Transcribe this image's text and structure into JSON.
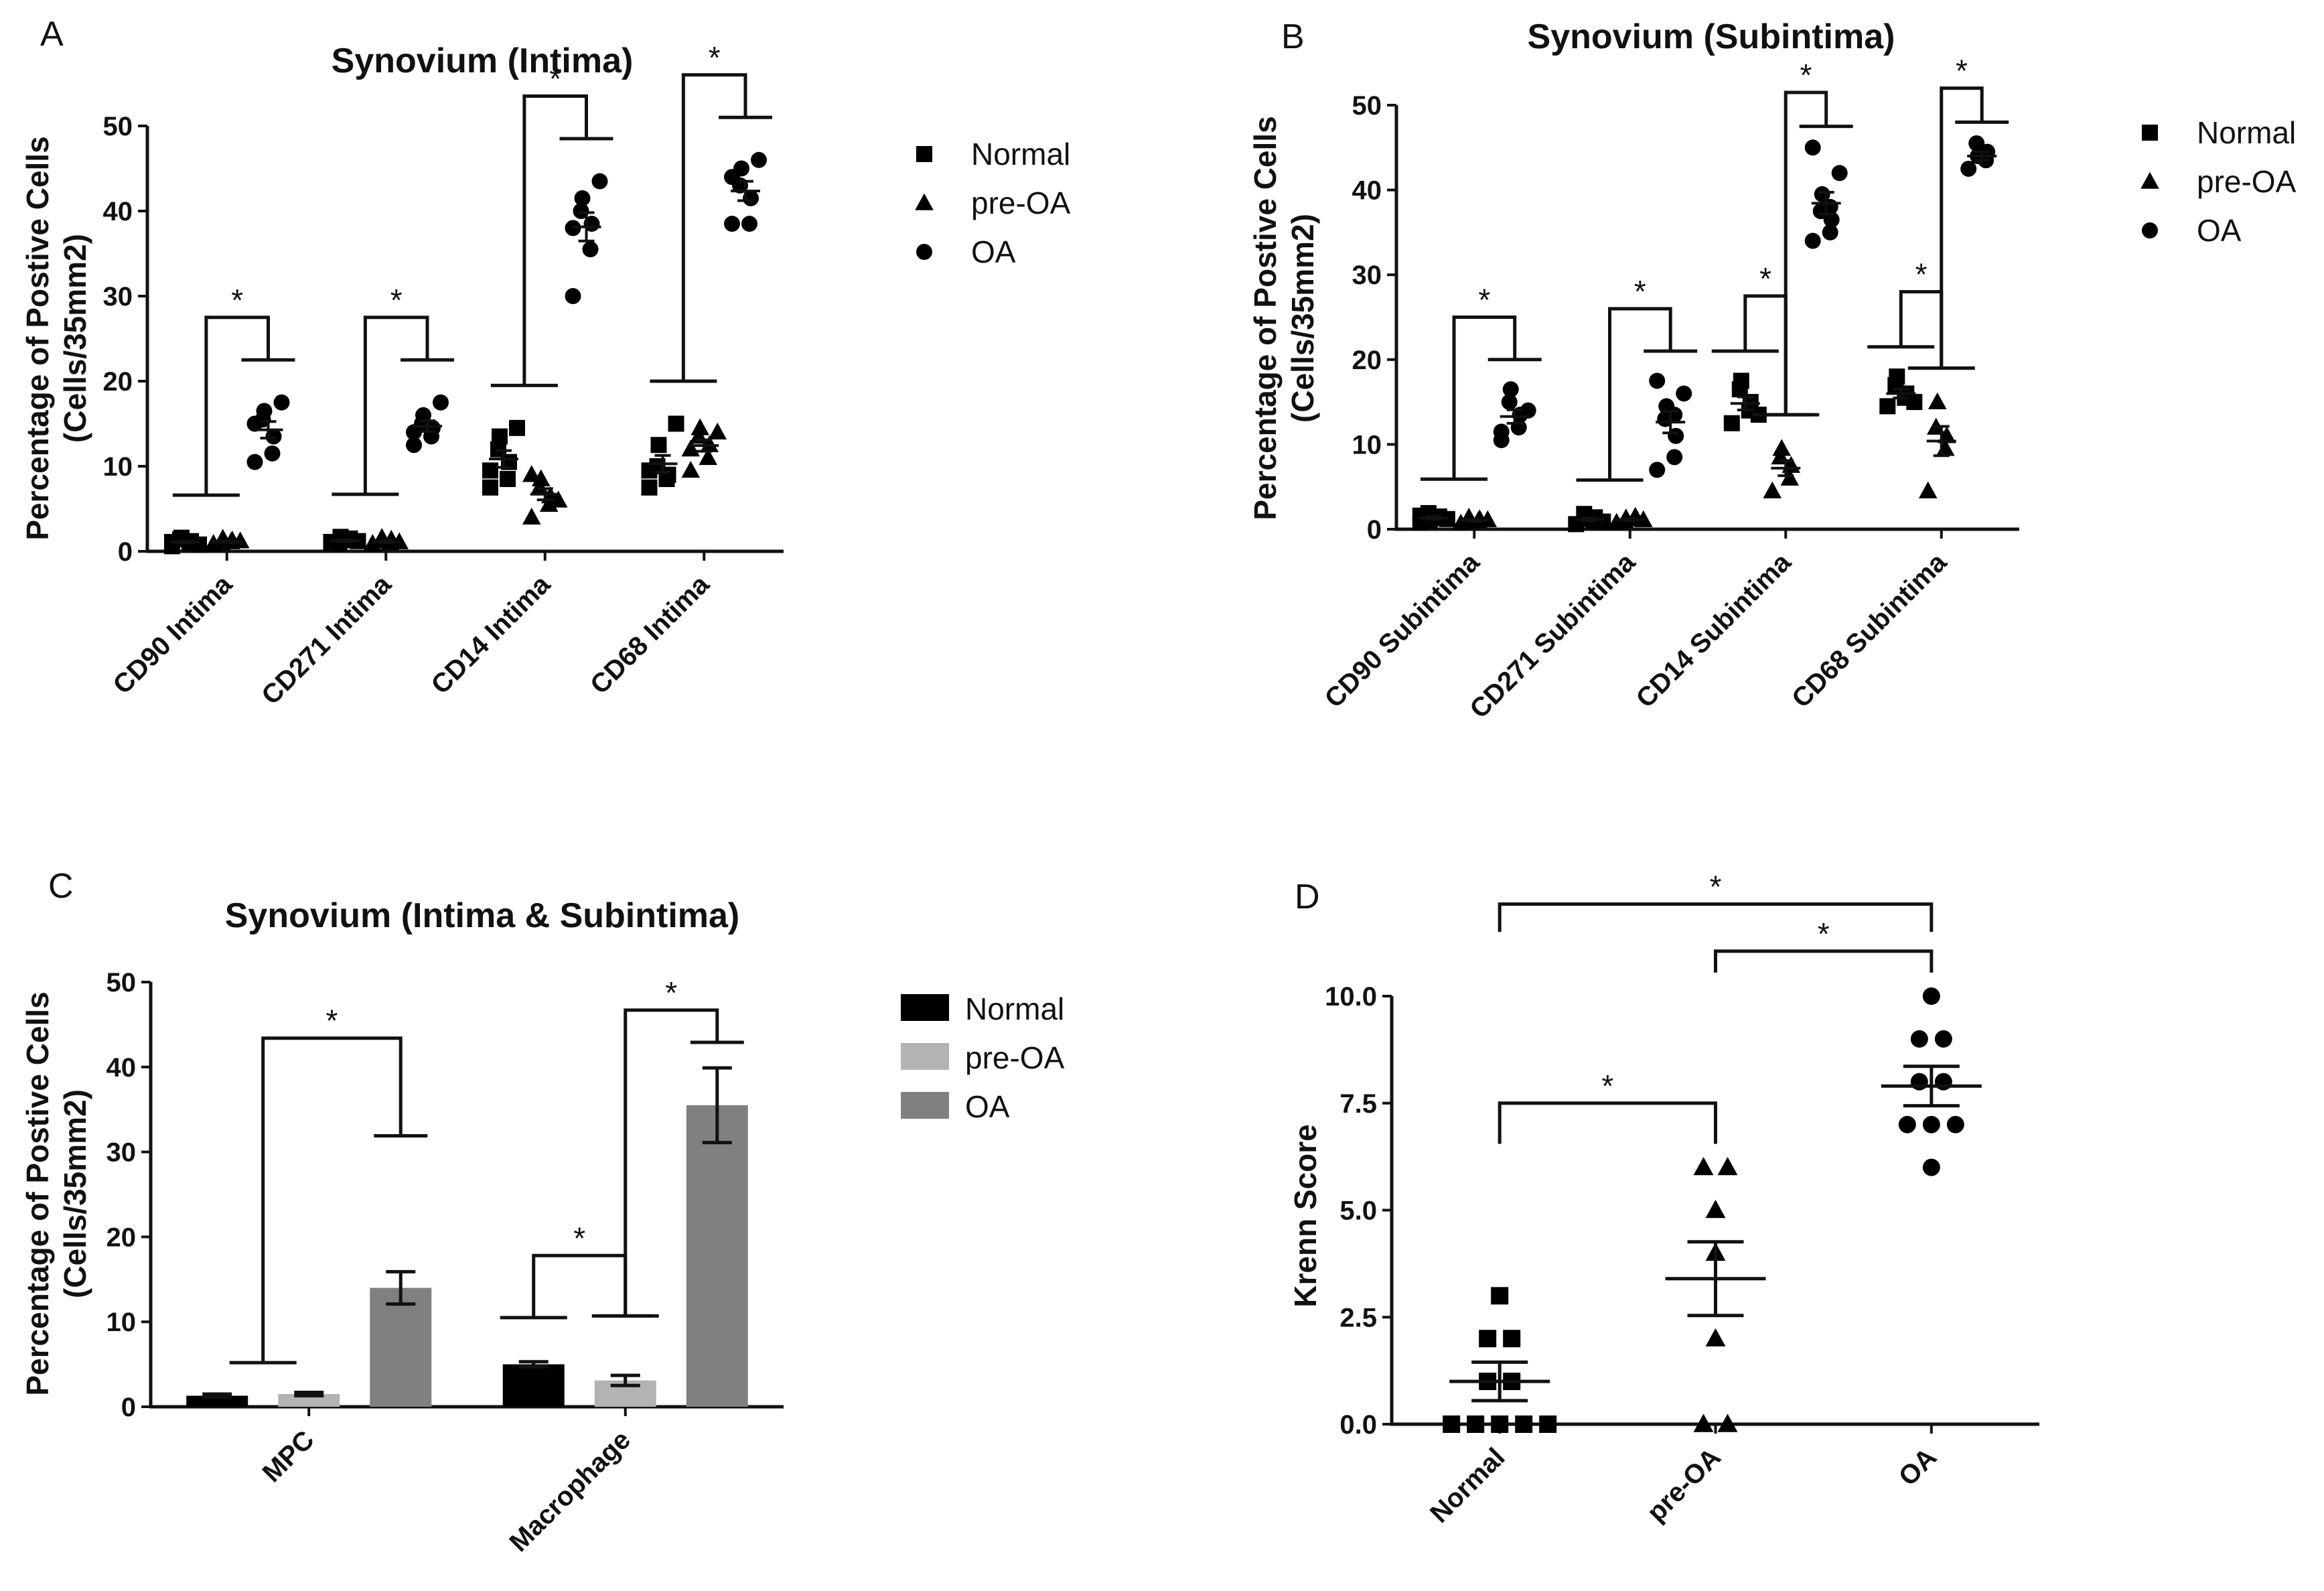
{
  "panels": [
    {
      "id": "A",
      "letter": "A",
      "chart_data": {
        "type": "scatter",
        "title": "Synovium (Intima)",
        "ylabel": [
          "Percentage of Postive Cells",
          "(Cells/35mm2)"
        ],
        "ylim": [
          0,
          50
        ],
        "yticks": [
          "0",
          "10",
          "20",
          "30",
          "40",
          "50"
        ],
        "categories": [
          "CD90 Intima",
          "CD271 Intima",
          "CD14 Intima",
          "CD68 Intima"
        ],
        "legend": [
          "Normal",
          "pre-OA",
          "OA"
        ],
        "groups": [
          {
            "Normal": [
              0.6,
              1.0,
              1.2,
              1.4,
              1.6,
              0.8,
              1.1
            ],
            "pre-OA": [
              0.9,
              1.1,
              1.3,
              1.0,
              1.5,
              1.2,
              0.8
            ],
            "OA": [
              10.5,
              11.5,
              13.5,
              15.5,
              16.5,
              17.5,
              15.0
            ]
          },
          {
            "Normal": [
              1.0,
              1.3,
              1.5,
              0.9,
              1.7,
              1.2,
              1.1
            ],
            "pre-OA": [
              0.8,
              1.0,
              1.4,
              1.2,
              1.6,
              1.1,
              0.9
            ],
            "OA": [
              12.5,
              13.5,
              14.5,
              15.0,
              16.0,
              17.5,
              14.0
            ]
          },
          {
            "Normal": [
              7.5,
              8.5,
              10.5,
              12.0,
              13.5,
              14.5,
              9.5
            ],
            "pre-OA": [
              4.0,
              5.5,
              6.5,
              7.5,
              8.5,
              6.0,
              9.0
            ],
            "OA": [
              30.0,
              35.5,
              38.5,
              40.0,
              41.5,
              43.5,
              38.0
            ]
          },
          {
            "Normal": [
              7.5,
              8.5,
              9.0,
              10.0,
              12.5,
              15.0,
              9.5
            ],
            "pre-OA": [
              9.5,
              11.0,
              12.5,
              13.5,
              14.5,
              14.0,
              12.0
            ],
            "OA": [
              38.5,
              38.5,
              41.5,
              43.0,
              45.0,
              46.0,
              44.0
            ]
          }
        ],
        "significance": [
          "*",
          "*",
          "*",
          "*"
        ]
      }
    },
    {
      "id": "B",
      "letter": "B",
      "chart_data": {
        "type": "scatter",
        "title": "Synovium (Subintima)",
        "ylabel": [
          "Percentage of Postive Cells",
          "(Cells/35mm2)"
        ],
        "ylim": [
          0,
          50
        ],
        "yticks": [
          "0",
          "10",
          "20",
          "30",
          "40",
          "50"
        ],
        "categories": [
          "CD90 Subintima",
          "CD271 Subintima",
          "CD14 Subintima",
          "CD68 Subintima"
        ],
        "legend": [
          "Normal",
          "pre-OA",
          "OA"
        ],
        "groups": [
          {
            "Normal": [
              0.8,
              1.3,
              1.5,
              1.9,
              1.0,
              1.2,
              1.6
            ],
            "pre-OA": [
              0.7,
              1.0,
              1.2,
              1.4,
              0.9,
              1.1
            ],
            "OA": [
              10.5,
              12.0,
              13.5,
              15.0,
              16.5,
              14.0,
              11.5
            ]
          },
          {
            "Normal": [
              0.6,
              1.0,
              1.4,
              1.8,
              1.2,
              0.9
            ],
            "pre-OA": [
              0.8,
              1.2,
              1.5,
              1.0,
              1.3,
              1.1
            ],
            "OA": [
              7.0,
              8.5,
              11.0,
              13.0,
              14.5,
              16.0,
              17.5,
              13.5
            ]
          },
          {
            "Normal": [
              12.5,
              14.0,
              15.0,
              16.5,
              17.5,
              13.5
            ],
            "pre-OA": [
              4.5,
              6.0,
              7.5,
              8.5,
              9.5
            ],
            "OA": [
              34.0,
              35.0,
              36.5,
              37.5,
              39.5,
              42.0,
              45.0,
              38.0
            ]
          },
          {
            "Normal": [
              14.5,
              15.5,
              16.0,
              17.0,
              18.0,
              15.0
            ],
            "pre-OA": [
              4.5,
              9.5,
              11.0,
              12.0,
              15.0
            ],
            "OA": [
              42.5,
              43.5,
              44.5,
              45.5,
              44.0
            ]
          }
        ],
        "significance": [
          "*",
          "*",
          "*",
          "*",
          "*",
          "*"
        ]
      }
    },
    {
      "id": "C",
      "letter": "C",
      "chart_data": {
        "type": "bar",
        "title": "Synovium (Intima & Subintima)",
        "ylabel": [
          "Percentage of Postive Cells",
          "(Cells/35mm2)"
        ],
        "ylim": [
          0,
          50
        ],
        "yticks": [
          "0",
          "10",
          "20",
          "30",
          "40",
          "50"
        ],
        "categories": [
          "MPC",
          "Macrophage"
        ],
        "legend": [
          "Normal",
          "pre-OA",
          "OA"
        ],
        "colors": [
          "#000000",
          "#b3b3b3",
          "#808080"
        ],
        "series": [
          {
            "name": "Normal",
            "values": [
              1.3,
              5.0
            ],
            "err": [
              0.2,
              0.3
            ]
          },
          {
            "name": "pre-OA",
            "values": [
              1.5,
              3.1
            ],
            "err": [
              0.2,
              0.6
            ]
          },
          {
            "name": "OA",
            "values": [
              14.0,
              35.5
            ],
            "err": [
              1.9,
              4.4
            ]
          }
        ],
        "significance": [
          "*",
          "*",
          "*"
        ]
      }
    },
    {
      "id": "D",
      "letter": "D",
      "chart_data": {
        "type": "scatter",
        "title": "",
        "ylabel": [
          "Krenn Score"
        ],
        "ylim": [
          0,
          10
        ],
        "yticks": [
          "0.0",
          "2.5",
          "5.0",
          "7.5",
          "10.0"
        ],
        "categories": [
          "Normal",
          "pre-OA",
          "OA"
        ],
        "groups": [
          {
            "marker": "square",
            "values": [
              0,
              0,
              0,
              0,
              0,
              1,
              1,
              2,
              2,
              3
            ],
            "mean": 1.0,
            "sem": 0.45
          },
          {
            "marker": "triangle",
            "values": [
              0,
              0,
              2,
              4,
              5,
              6,
              6
            ],
            "mean": 3.4,
            "sem": 0.86
          },
          {
            "marker": "circle",
            "values": [
              6,
              7,
              7,
              7,
              8,
              8,
              9,
              9,
              10
            ],
            "mean": 7.9,
            "sem": 0.46
          }
        ],
        "significance": [
          "*",
          "*",
          "*"
        ]
      }
    }
  ]
}
